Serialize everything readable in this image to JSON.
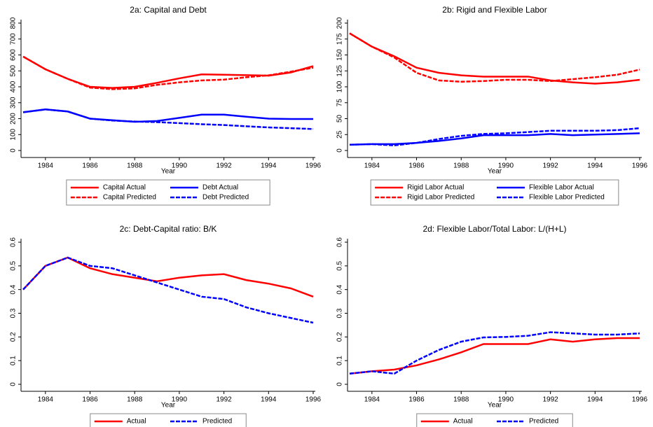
{
  "chart_data": [
    {
      "type": "line",
      "title": "2a: Capital and Debt",
      "x_label": "Year",
      "x": [
        1983,
        1984,
        1985,
        1986,
        1987,
        1988,
        1989,
        1990,
        1991,
        1992,
        1993,
        1994,
        1995,
        1996
      ],
      "xlim": [
        1983,
        1996
      ],
      "xticks": [
        1984,
        1986,
        1988,
        1990,
        1992,
        1994,
        1996
      ],
      "ylim": [
        0,
        800
      ],
      "yticks": [
        0,
        100,
        200,
        300,
        400,
        500,
        600,
        700,
        800
      ],
      "legend": "bottom",
      "series": [
        {
          "name": "Capital Actual",
          "color": "#ff0000",
          "style": "solid",
          "values": [
            590,
            510,
            450,
            400,
            393,
            400,
            425,
            453,
            478,
            476,
            473,
            470,
            490,
            530
          ]
        },
        {
          "name": "Debt Actual",
          "color": "#0000ff",
          "style": "solid",
          "values": [
            240,
            258,
            245,
            200,
            190,
            180,
            185,
            205,
            225,
            225,
            212,
            200,
            198,
            198
          ]
        },
        {
          "name": "Capital Predicted",
          "color": "#ff0000",
          "style": "dash",
          "values": [
            590,
            510,
            450,
            395,
            385,
            390,
            412,
            428,
            440,
            445,
            460,
            472,
            495,
            520
          ]
        },
        {
          "name": "Debt Predicted",
          "color": "#0000ff",
          "style": "dash",
          "values": [
            240,
            258,
            245,
            200,
            188,
            182,
            178,
            172,
            165,
            160,
            152,
            145,
            140,
            135
          ]
        }
      ]
    },
    {
      "type": "line",
      "title": "2b: Rigid and Flexible Labor",
      "x_label": "Year",
      "x": [
        1983,
        1984,
        1985,
        1986,
        1987,
        1988,
        1989,
        1990,
        1991,
        1992,
        1993,
        1994,
        1995,
        1996
      ],
      "xlim": [
        1983,
        1996
      ],
      "xticks": [
        1984,
        1986,
        1988,
        1990,
        1992,
        1994,
        1996
      ],
      "ylim": [
        0,
        200
      ],
      "yticks": [
        0,
        25,
        50,
        75,
        100,
        125,
        150,
        175,
        200
      ],
      "legend": "bottom",
      "series": [
        {
          "name": "Rigid Labor Actual",
          "color": "#ff0000",
          "style": "solid",
          "values": [
            184,
            163,
            148,
            130,
            122,
            118,
            116,
            116,
            116,
            110,
            107,
            105,
            107,
            111
          ]
        },
        {
          "name": "Flexible Labor Actual",
          "color": "#0000ff",
          "style": "solid",
          "values": [
            9,
            10,
            10,
            12,
            15,
            19,
            24,
            24,
            24,
            26,
            24,
            25,
            26,
            27
          ]
        },
        {
          "name": "Rigid Labor Predicted",
          "color": "#ff0000",
          "style": "dash",
          "values": [
            184,
            163,
            146,
            122,
            110,
            108,
            109,
            111,
            111,
            109,
            112,
            115,
            119,
            127
          ]
        },
        {
          "name": "Flexible Labor Predicted",
          "color": "#0000ff",
          "style": "dash",
          "values": [
            9,
            10,
            8,
            12,
            18,
            23,
            26,
            27,
            29,
            31,
            31,
            31,
            32,
            35
          ]
        }
      ]
    },
    {
      "type": "line",
      "title": "2c: Debt-Capital ratio: B/K",
      "x_label": "Year",
      "x": [
        1983,
        1984,
        1985,
        1986,
        1987,
        1988,
        1989,
        1990,
        1991,
        1992,
        1993,
        1994,
        1995,
        1996
      ],
      "xlim": [
        1983,
        1996
      ],
      "xticks": [
        1984,
        1986,
        1988,
        1990,
        1992,
        1994,
        1996
      ],
      "ylim": [
        0,
        0.6
      ],
      "yticks": [
        0,
        0.1,
        0.2,
        0.3,
        0.4,
        0.5,
        0.6
      ],
      "legend": "bottom",
      "series": [
        {
          "name": "Actual",
          "color": "#ff0000",
          "style": "solid",
          "values": [
            0.4,
            0.5,
            0.535,
            0.49,
            0.465,
            0.45,
            0.435,
            0.45,
            0.46,
            0.465,
            0.44,
            0.425,
            0.405,
            0.37
          ]
        },
        {
          "name": "Predicted",
          "color": "#0000ff",
          "style": "dash",
          "values": [
            0.4,
            0.5,
            0.535,
            0.5,
            0.49,
            0.46,
            0.43,
            0.4,
            0.37,
            0.36,
            0.325,
            0.3,
            0.28,
            0.26
          ]
        }
      ]
    },
    {
      "type": "line",
      "title": "2d: Flexible Labor/Total Labor: L/(H+L)",
      "x_label": "Year",
      "x": [
        1983,
        1984,
        1985,
        1986,
        1987,
        1988,
        1989,
        1990,
        1991,
        1992,
        1993,
        1994,
        1995,
        1996
      ],
      "xlim": [
        1983,
        1996
      ],
      "xticks": [
        1984,
        1986,
        1988,
        1990,
        1992,
        1994,
        1996
      ],
      "ylim": [
        0,
        0.6
      ],
      "yticks": [
        0,
        0.1,
        0.2,
        0.3,
        0.4,
        0.5,
        0.6
      ],
      "legend": "bottom",
      "series": [
        {
          "name": "Actual",
          "color": "#ff0000",
          "style": "solid",
          "values": [
            0.045,
            0.055,
            0.062,
            0.08,
            0.105,
            0.135,
            0.17,
            0.17,
            0.17,
            0.19,
            0.18,
            0.19,
            0.195,
            0.195
          ]
        },
        {
          "name": "Predicted",
          "color": "#0000ff",
          "style": "dash",
          "values": [
            0.045,
            0.055,
            0.045,
            0.1,
            0.145,
            0.18,
            0.198,
            0.2,
            0.205,
            0.22,
            0.215,
            0.21,
            0.21,
            0.215
          ]
        }
      ]
    }
  ]
}
